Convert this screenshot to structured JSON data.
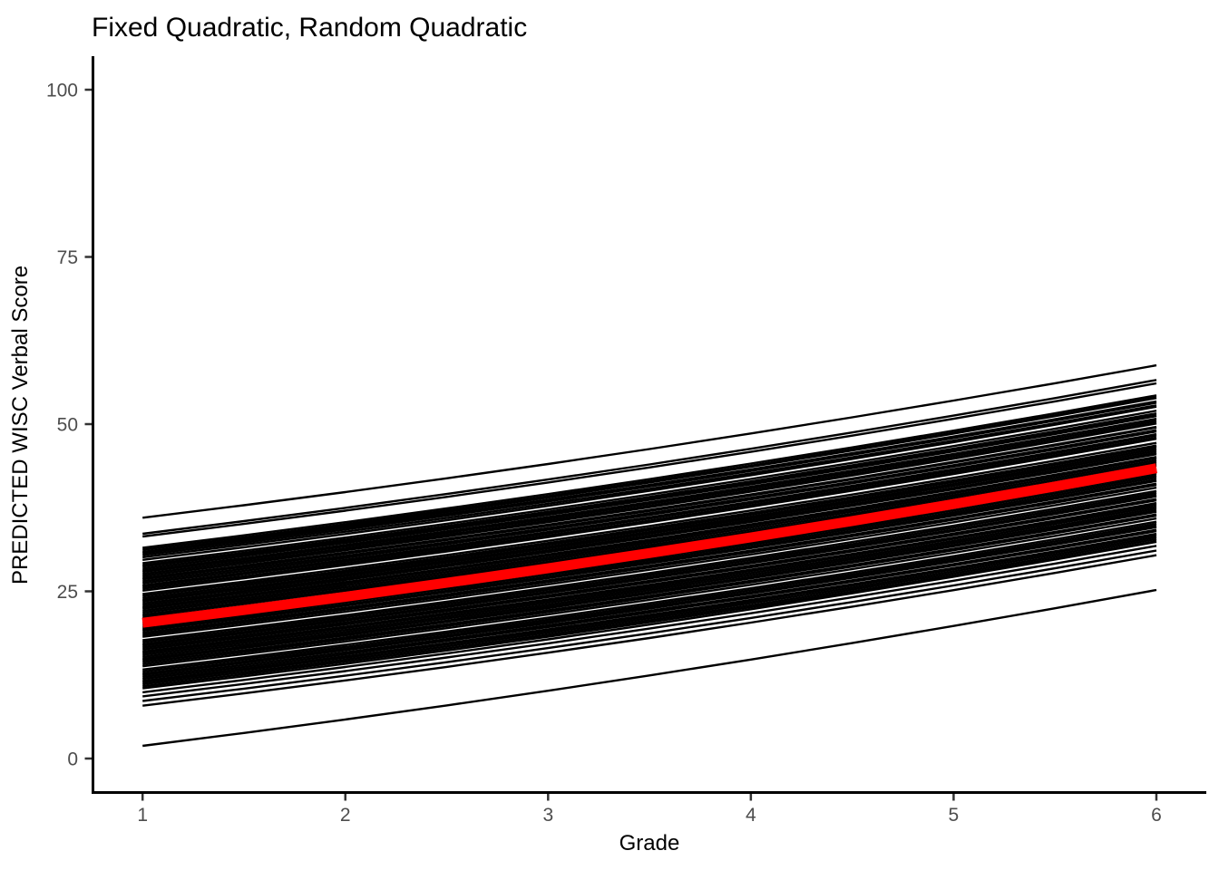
{
  "colors": {
    "background": "#FFFFFF",
    "axis_line": "#000000",
    "tick_mark": "#333333",
    "tick_label": "#4D4D4D",
    "title_text": "#000000",
    "mean_line": "#FF0000",
    "trajectory_line": "#000000"
  },
  "chart_data": {
    "type": "line",
    "title": "Fixed Quadratic, Random Quadratic",
    "xlabel": "Grade",
    "ylabel": "PREDICTED WISC Verbal Score",
    "x_ticks": [
      1,
      2,
      3,
      4,
      5,
      6
    ],
    "y_ticks": [
      0,
      25,
      50,
      75,
      100
    ],
    "xlim": [
      1,
      6
    ],
    "ylim": [
      0,
      100
    ],
    "grid": false,
    "legend": false,
    "description": "Spaghetti plot of individual predicted WISC verbal score trajectories (black quadratic curves, grades 1-6) with the average predicted trajectory overlaid in thick red.",
    "mean_trajectory": {
      "name": "average-predicted-trajectory",
      "color": "#FF0000",
      "line_width": 11,
      "start": 20.3,
      "end": 43.4,
      "curvature": 0.182,
      "grades": [
        1,
        2,
        3,
        4,
        5,
        6
      ],
      "values": [
        20.3,
        24.2,
        28.4,
        33.1,
        38.1,
        43.4
      ]
    },
    "individual_trajectories": {
      "name": "individual-predicted-trajectories",
      "color": "#000000",
      "line_width": 2.4,
      "curvature": 0.18,
      "grade_range": [
        1,
        6
      ],
      "lines_start_end": [
        [
          36.0,
          58.8
        ],
        [
          33.6,
          56.6
        ],
        [
          33.2,
          56.1
        ],
        [
          31.5,
          54.3
        ],
        [
          31.2,
          54.0
        ],
        [
          30.9,
          53.9
        ],
        [
          30.7,
          53.4
        ],
        [
          30.4,
          53.2
        ],
        [
          30.1,
          52.8
        ],
        [
          29.7,
          52.6
        ],
        [
          29.2,
          52.0
        ],
        [
          28.9,
          51.6
        ],
        [
          28.7,
          51.3
        ],
        [
          28.4,
          51.2
        ],
        [
          28.1,
          50.8
        ],
        [
          27.9,
          50.5
        ],
        [
          27.6,
          50.2
        ],
        [
          27.3,
          50.1
        ],
        [
          27.0,
          49.6
        ],
        [
          26.8,
          49.5
        ],
        [
          26.5,
          49.1
        ],
        [
          26.2,
          48.9
        ],
        [
          25.9,
          48.5
        ],
        [
          25.7,
          48.3
        ],
        [
          25.4,
          48.0
        ],
        [
          25.1,
          47.8
        ],
        [
          24.6,
          47.2
        ],
        [
          24.3,
          46.8
        ],
        [
          24.0,
          46.6
        ],
        [
          23.7,
          46.3
        ],
        [
          23.5,
          46.0
        ],
        [
          23.2,
          45.7
        ],
        [
          22.9,
          45.5
        ],
        [
          22.6,
          45.1
        ],
        [
          22.4,
          44.9
        ],
        [
          22.1,
          44.6
        ],
        [
          21.8,
          44.3
        ],
        [
          21.5,
          44.0
        ],
        [
          21.3,
          43.8
        ],
        [
          21.0,
          43.4
        ],
        [
          20.7,
          43.2
        ],
        [
          20.4,
          42.8
        ],
        [
          20.2,
          42.6
        ],
        [
          19.9,
          42.3
        ],
        [
          19.6,
          42.0
        ],
        [
          19.3,
          41.7
        ],
        [
          19.1,
          41.5
        ],
        [
          18.8,
          41.1
        ],
        [
          18.5,
          40.9
        ],
        [
          18.2,
          40.5
        ],
        [
          17.7,
          40.0
        ],
        [
          17.4,
          39.7
        ],
        [
          17.1,
          39.4
        ],
        [
          16.9,
          39.2
        ],
        [
          16.6,
          38.8
        ],
        [
          16.3,
          38.6
        ],
        [
          16.0,
          38.2
        ],
        [
          15.8,
          38.0
        ],
        [
          15.5,
          37.7
        ],
        [
          15.2,
          37.4
        ],
        [
          14.9,
          37.1
        ],
        [
          14.7,
          36.9
        ],
        [
          14.4,
          36.5
        ],
        [
          14.1,
          36.3
        ],
        [
          13.8,
          35.9
        ],
        [
          13.3,
          35.4
        ],
        [
          13.0,
          35.1
        ],
        [
          12.7,
          34.8
        ],
        [
          12.5,
          34.6
        ],
        [
          12.2,
          34.2
        ],
        [
          11.9,
          34.0
        ],
        [
          11.6,
          33.6
        ],
        [
          11.4,
          33.4
        ],
        [
          11.1,
          33.1
        ],
        [
          10.8,
          32.8
        ],
        [
          10.5,
          32.5
        ],
        [
          9.9,
          32.4
        ],
        [
          9.3,
          31.8
        ],
        [
          8.6,
          31.1
        ],
        [
          7.9,
          30.4
        ],
        [
          1.9,
          25.2
        ]
      ]
    }
  }
}
